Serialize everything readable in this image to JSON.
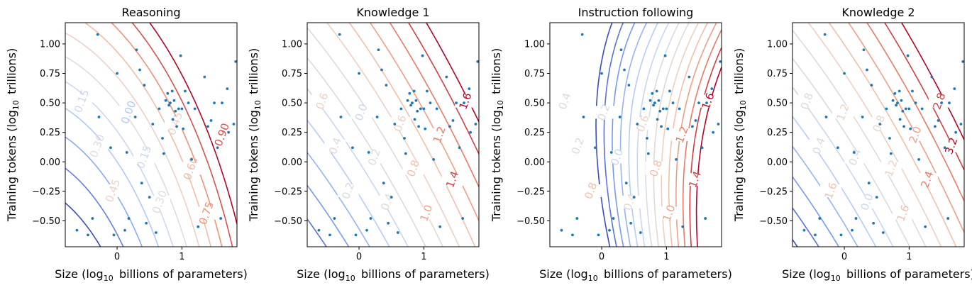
{
  "chart_data": [
    {
      "type": "contour",
      "title": "Reasoning",
      "xlabel": "Size (log10 billions of parameters)",
      "ylabel": "Training tokens (log10 trillions)",
      "xlim": [
        -0.8,
        1.85
      ],
      "ylim": [
        -0.72,
        1.18
      ],
      "xticks": [
        "0",
        "1"
      ],
      "yticks": [
        "1.00",
        "0.75",
        "0.50",
        "0.25",
        "0.00",
        "−0.25",
        "−0.50"
      ],
      "contour_model": {
        "a": 0.45,
        "b": 0.55,
        "c": 0.14,
        "d": 0.1,
        "e": 0.0,
        "f": 0.4
      },
      "levels": [
        -0.45,
        -0.3,
        -0.15,
        0.0,
        0.15,
        0.3,
        0.45,
        0.6,
        0.75,
        0.9,
        1.05
      ],
      "contour_labels": [
        "0.15",
        "0.30",
        "0.45",
        "0.00",
        "0.15",
        "0.30",
        "0.45",
        "0.60",
        "0.75",
        "0.90"
      ],
      "legend": "none",
      "grid": false
    },
    {
      "type": "contour",
      "title": "Knowledge 1",
      "xlabel": "Size (log10 billions of parameters)",
      "ylabel": "Training tokens (log10 trillions)",
      "xlim": [
        -0.8,
        1.85
      ],
      "ylim": [
        -0.72,
        1.18
      ],
      "xticks": [
        "0",
        "1"
      ],
      "yticks": [
        "1.00",
        "0.75",
        "0.50",
        "0.25",
        "0.00",
        "−0.25",
        "−0.50"
      ],
      "contour_model": {
        "a": 0.62,
        "b": 0.72,
        "c": 0.06,
        "d": 0.03,
        "e": 0.0,
        "f": 0.1
      },
      "levels": [
        -1.0,
        -0.8,
        -0.6,
        -0.4,
        -0.2,
        0.0,
        0.2,
        0.4,
        0.6,
        0.8,
        1.0,
        1.2,
        1.4,
        1.6
      ],
      "contour_labels": [
        "0.6",
        "0.4",
        "0.2",
        "0.0",
        "0.2",
        "0.4",
        "0.6",
        "0.8",
        "1.0",
        "1.2",
        "1.4",
        "1.6"
      ],
      "legend": "none",
      "grid": false
    },
    {
      "type": "contour",
      "title": "Instruction following",
      "xlabel": "Size (log10 billions of parameters)",
      "ylabel": "Training tokens (log10 trillions)",
      "xlim": [
        -0.8,
        1.85
      ],
      "ylim": [
        -0.72,
        1.18
      ],
      "xticks": [
        "0",
        "1"
      ],
      "yticks": [
        "1.00",
        "0.75",
        "0.50",
        "0.25",
        "0.00",
        "−0.25",
        "−0.50"
      ],
      "contour_model": {
        "a": 0.85,
        "b": 0.35,
        "c": 0.0,
        "d": -0.4,
        "e": -0.9,
        "f": 0.0
      },
      "levels": [
        -1.0,
        -0.8,
        -0.6,
        -0.4,
        -0.2,
        0.0,
        0.2,
        0.4,
        0.6,
        0.8,
        1.0,
        1.2,
        1.4,
        1.6
      ],
      "contour_labels": [
        "0.4",
        "0.2",
        "0.8",
        "0.2",
        "0.0",
        "0.4",
        "0.6",
        "0.8",
        "1.0",
        "1.2",
        "1.4",
        "1.6"
      ],
      "legend": "none",
      "grid": false
    },
    {
      "type": "contour",
      "title": "Knowledge 2",
      "xlabel": "Size (log10 billions of parameters)",
      "ylabel": "Training tokens (log10 trillions)",
      "xlim": [
        -0.8,
        1.85
      ],
      "ylim": [
        -0.72,
        1.18
      ],
      "xticks": [
        "0",
        "1"
      ],
      "yticks": [
        "1.00",
        "0.75",
        "0.50",
        "0.25",
        "0.00",
        "−0.25",
        "−0.50"
      ],
      "contour_model": {
        "a": 1.35,
        "b": 1.55,
        "c": 0.12,
        "d": 0.06,
        "e": 0.0,
        "f": 0.4
      },
      "levels": [
        -2.0,
        -1.6,
        -1.2,
        -0.8,
        -0.4,
        0.0,
        0.4,
        0.8,
        1.2,
        1.6,
        2.0,
        2.4,
        2.8,
        3.2
      ],
      "contour_labels": [
        "0.8",
        "0.4",
        "1.6",
        "1.2",
        "0.4",
        "0.0",
        "0.8",
        "1.2",
        "1.6",
        "2.0",
        "2.4",
        "2.8",
        "3.2"
      ],
      "legend": "none",
      "grid": false
    }
  ],
  "models": [
    [
      -0.62,
      -0.58
    ],
    [
      -0.45,
      -0.62
    ],
    [
      -0.38,
      -0.48
    ],
    [
      -0.3,
      1.08
    ],
    [
      -0.28,
      0.38
    ],
    [
      -0.1,
      0.12
    ],
    [
      -0.05,
      -0.62
    ],
    [
      0.0,
      0.75
    ],
    [
      0.12,
      -0.58
    ],
    [
      0.15,
      0.08
    ],
    [
      0.18,
      -0.48
    ],
    [
      0.28,
      0.38
    ],
    [
      0.3,
      0.95
    ],
    [
      0.35,
      0.78
    ],
    [
      0.38,
      -0.18
    ],
    [
      0.42,
      0.65
    ],
    [
      0.45,
      -0.52
    ],
    [
      0.5,
      -0.3
    ],
    [
      0.55,
      0.32
    ],
    [
      0.6,
      -0.6
    ],
    [
      0.65,
      0.45
    ],
    [
      0.7,
      0.2
    ],
    [
      0.72,
      0.07
    ],
    [
      0.75,
      0.52
    ],
    [
      0.78,
      0.58
    ],
    [
      0.8,
      0.48
    ],
    [
      0.82,
      0.5
    ],
    [
      0.85,
      0.6
    ],
    [
      0.86,
      0.36
    ],
    [
      0.88,
      0.52
    ],
    [
      0.9,
      0.43
    ],
    [
      0.92,
      0.3
    ],
    [
      0.95,
      0.45
    ],
    [
      0.98,
      0.9
    ],
    [
      1.0,
      0.45
    ],
    [
      1.02,
      0.28
    ],
    [
      1.05,
      0.6
    ],
    [
      1.1,
      0.5
    ],
    [
      1.15,
      0.02
    ],
    [
      1.2,
      0.45
    ],
    [
      1.25,
      -0.55
    ],
    [
      1.35,
      0.72
    ],
    [
      1.4,
      0.3
    ],
    [
      1.45,
      0.35
    ],
    [
      1.5,
      0.5
    ],
    [
      1.55,
      0.12
    ],
    [
      1.6,
      -0.48
    ],
    [
      1.62,
      0.5
    ],
    [
      1.7,
      0.62
    ],
    [
      1.72,
      0.25
    ],
    [
      1.8,
      0.32
    ],
    [
      1.83,
      0.85
    ]
  ]
}
